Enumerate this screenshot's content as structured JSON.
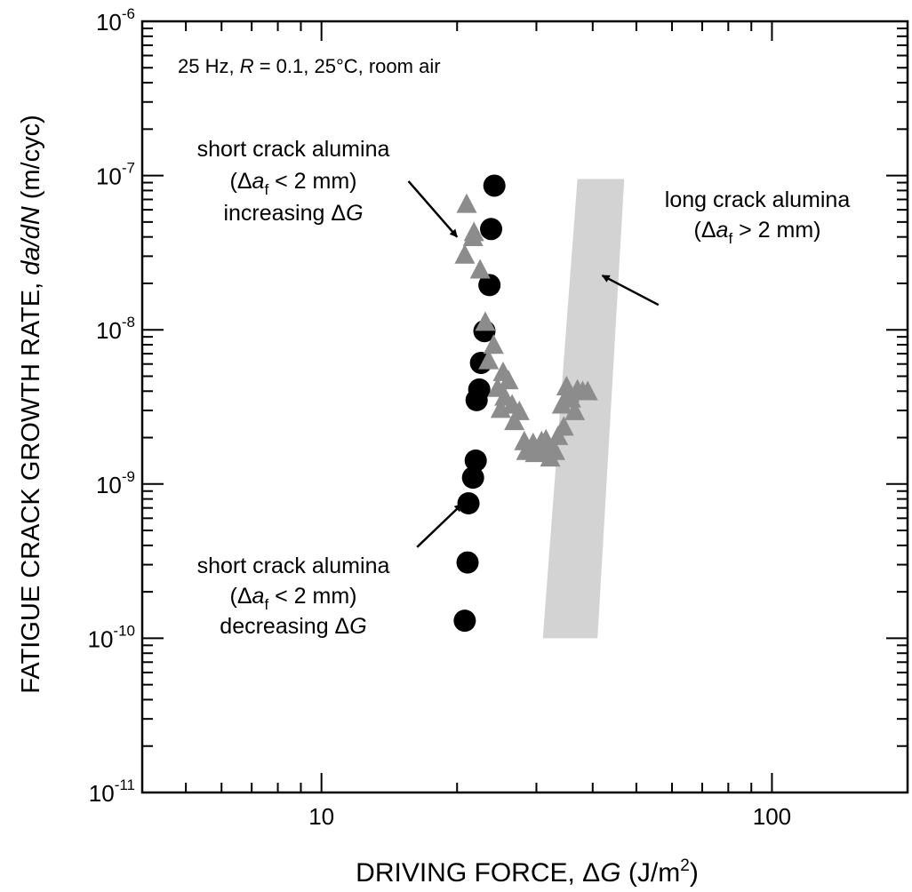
{
  "chart_data": {
    "type": "scatter",
    "x_scale": "log",
    "y_scale": "log",
    "xlim": [
      4,
      200
    ],
    "ylim": [
      1e-11,
      1e-06
    ],
    "x_ticks": [
      10,
      100
    ],
    "y_ticks": [
      1e-11,
      1e-10,
      1e-09,
      1e-08,
      1e-07,
      1e-06
    ],
    "xlabel": {
      "pre": "DRIVING FORCE, Δ",
      "italic": "G",
      "post": " (J/m",
      "sup": "2",
      "end": ")"
    },
    "ylabel": {
      "pre": "FATIGUE CRACK GROWTH RATE, ",
      "italic": "da/dN",
      "post": " (m/cyc)"
    },
    "x_tick_labels": [
      "10",
      "100"
    ],
    "y_tick_labels": [
      {
        "base": "10",
        "exp": "-11"
      },
      {
        "base": "10",
        "exp": "-10"
      },
      {
        "base": "10",
        "exp": "-9"
      },
      {
        "base": "10",
        "exp": "-8"
      },
      {
        "base": "10",
        "exp": "-7"
      },
      {
        "base": "10",
        "exp": "-6"
      }
    ],
    "conditions": {
      "a": "25 Hz, ",
      "b": "R",
      "c": " = 0.1, 25°C, room air"
    },
    "series": [
      {
        "marker": "circle",
        "color": "#000000",
        "points": [
          [
            24.2,
            8.6e-08
          ],
          [
            23.8,
            4.5e-08
          ],
          [
            23.6,
            1.95e-08
          ],
          [
            23.0,
            9.8e-09
          ],
          [
            22.6,
            6.1e-09
          ],
          [
            22.4,
            4.1e-09
          ],
          [
            22.1,
            3.5e-09
          ],
          [
            22.0,
            1.42e-09
          ],
          [
            21.7,
            1.1e-09
          ],
          [
            21.2,
            7.5e-10
          ],
          [
            21.1,
            3.1e-10
          ],
          [
            20.8,
            1.3e-10
          ]
        ]
      },
      {
        "marker": "triangle",
        "color": "#8c8c8c",
        "points": [
          [
            21.0,
            6.4e-08
          ],
          [
            21.8,
            4.2e-08
          ],
          [
            21.7,
            3.9e-08
          ],
          [
            20.8,
            3e-08
          ],
          [
            22.5,
            2.4e-08
          ],
          [
            23.1,
            1.1e-08
          ],
          [
            24.1,
            7.8e-09
          ],
          [
            23.5,
            6.2e-09
          ],
          [
            25.3,
            5.2e-09
          ],
          [
            26.0,
            4.6e-09
          ],
          [
            24.6,
            4.1e-09
          ],
          [
            25.5,
            3.6e-09
          ],
          [
            26.5,
            3.2e-09
          ],
          [
            25.0,
            3e-09
          ],
          [
            27.5,
            2.9e-09
          ],
          [
            26.8,
            2.5e-09
          ],
          [
            28.2,
            1.85e-09
          ],
          [
            29.5,
            1.8e-09
          ],
          [
            28.5,
            1.6e-09
          ],
          [
            29.8,
            1.55e-09
          ],
          [
            30.8,
            1.85e-09
          ],
          [
            31.5,
            1.9e-09
          ],
          [
            31.2,
            1.6e-09
          ],
          [
            32.2,
            1.45e-09
          ],
          [
            33.0,
            1.6e-09
          ],
          [
            33.5,
            2e-09
          ],
          [
            34.2,
            3.2e-09
          ],
          [
            35.0,
            4.2e-09
          ],
          [
            35.8,
            3.5e-09
          ],
          [
            36.5,
            2.9e-09
          ],
          [
            38.0,
            3.9e-09
          ],
          [
            39.0,
            3.9e-09
          ],
          [
            35.5,
            3.8e-09
          ],
          [
            34.5,
            2.3e-09
          ],
          [
            37.0,
            4e-09
          ]
        ]
      }
    ],
    "band": {
      "color": "#d3d3d3",
      "corners": [
        [
          31.0,
          1e-10
        ],
        [
          41.0,
          1e-10
        ],
        [
          47.0,
          9.5e-08
        ],
        [
          37.0,
          9.5e-08
        ]
      ]
    },
    "annotations": [
      {
        "lines": [
          {
            "parts": [
              {
                "t": "short crack alumina"
              }
            ]
          },
          {
            "parts": [
              {
                "t": "(Δ"
              },
              {
                "t": "a",
                "i": true
              },
              {
                "t": "f",
                "sub": true
              },
              {
                "t": " < 2 mm)"
              }
            ]
          },
          {
            "parts": [
              {
                "t": "increasing Δ"
              },
              {
                "t": "G",
                "i": true
              }
            ]
          }
        ],
        "arrow_from": [
          15.6,
          9.2e-08
        ],
        "arrow_to": [
          20.0,
          4e-08
        ]
      },
      {
        "lines": [
          {
            "parts": [
              {
                "t": "long crack alumina"
              }
            ]
          },
          {
            "parts": [
              {
                "t": "(Δ"
              },
              {
                "t": "a",
                "i": true
              },
              {
                "t": "f",
                "sub": true
              },
              {
                "t": " > 2 mm)"
              }
            ]
          }
        ],
        "arrow_from": [
          56.0,
          1.45e-08
        ],
        "arrow_to": [
          42.0,
          2.25e-08
        ]
      },
      {
        "lines": [
          {
            "parts": [
              {
                "t": "short crack alumina"
              }
            ]
          },
          {
            "parts": [
              {
                "t": "(Δ"
              },
              {
                "t": "a",
                "i": true
              },
              {
                "t": "f",
                "sub": true
              },
              {
                "t": " < 2 mm)"
              }
            ]
          },
          {
            "parts": [
              {
                "t": "decreasing Δ"
              },
              {
                "t": "G",
                "i": true
              }
            ]
          }
        ],
        "arrow_from": [
          16.3,
          3.9e-10
        ],
        "arrow_to": [
          20.5,
          7.4e-10
        ]
      }
    ]
  }
}
